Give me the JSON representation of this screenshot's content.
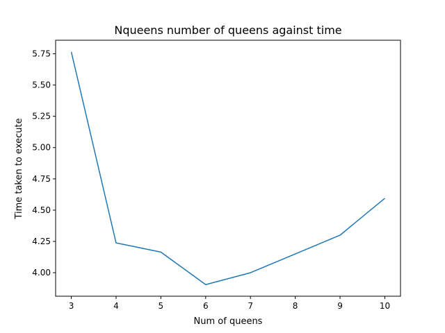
{
  "chart_data": {
    "type": "line",
    "title": "Nqueens number of queens against time",
    "xlabel": "Num of queens",
    "ylabel": "Time taken to execute",
    "x": [
      3,
      4,
      5,
      6,
      7,
      8,
      9,
      10
    ],
    "series": [
      {
        "values": [
          5.765,
          4.238,
          4.165,
          3.905,
          4.0,
          4.15,
          4.3,
          4.595
        ],
        "color": "#1f77b4"
      }
    ],
    "xticks": [
      3,
      4,
      5,
      6,
      7,
      8,
      9,
      10
    ],
    "yticks": [
      4.0,
      4.25,
      4.5,
      4.75,
      5.0,
      5.25,
      5.5,
      5.75
    ],
    "ytick_labels": [
      "4.00",
      "4.25",
      "4.50",
      "4.75",
      "5.00",
      "5.25",
      "5.50",
      "5.75"
    ],
    "xlim": [
      2.65,
      10.35
    ],
    "ylim": [
      3.812,
      5.858
    ],
    "grid": false,
    "legend": false
  }
}
